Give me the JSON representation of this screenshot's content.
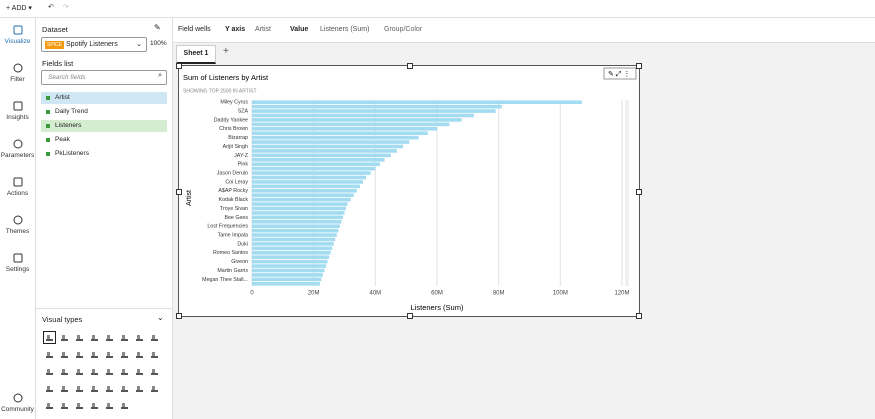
{
  "toolbar": {
    "add": "ADD"
  },
  "nav": [
    "Visualize",
    "Filter",
    "Insights",
    "Parameters",
    "Actions",
    "Themes",
    "Settings",
    "Community"
  ],
  "dataset": {
    "label": "Dataset",
    "badge": "SPICE",
    "name": "Spotify Listeners",
    "percent": "100%"
  },
  "fields": {
    "label": "Fields list",
    "search": "Search fields",
    "items": [
      "Artist",
      "Daily Trend",
      "Listeners",
      "Peak",
      "PkListeners"
    ]
  },
  "visual_types": {
    "label": "Visual types"
  },
  "field_wells": {
    "label": "Field wells",
    "y_axis": "Y axis",
    "y_field": "Artist",
    "value": "Value",
    "value_field": "Listeners (Sum)",
    "group": "Group/Color"
  },
  "sheets": [
    "Sheet 1"
  ],
  "chart_data": {
    "type": "hbar",
    "title": "Sum of Listeners by Artist",
    "subtitle": "SHOWING TOP 2500 IN ARTIST",
    "x_label": "Listeners (Sum)",
    "y_label": "Artist",
    "color": "#a3dcf0",
    "grid": true,
    "categories": [
      "Miley Cyrus",
      null,
      "SZA",
      null,
      "Daddy Yankee",
      null,
      "Chris Brown",
      null,
      "Bizarrap",
      null,
      "Arijit Singh",
      null,
      "JAY-Z",
      null,
      "Pink",
      null,
      "Jason Derulo",
      null,
      "Coi Leray",
      null,
      "A$AP Rocky",
      null,
      "Kodak Black",
      null,
      "Troye Sivan",
      null,
      "Bee Gees",
      null,
      "Lost Frequencies",
      null,
      "Tame Impala",
      null,
      "Duki",
      null,
      "Romeo Santos",
      null,
      "Giveon",
      null,
      "Martin Garrix",
      null,
      "Megan Thee Stall...",
      null
    ],
    "values": [
      107000000,
      81000000,
      79000000,
      72000000,
      68000000,
      64000000,
      60000000,
      57000000,
      54000000,
      51000000,
      49000000,
      47000000,
      45000000,
      43000000,
      41500000,
      40000000,
      38500000,
      37000000,
      36000000,
      35000000,
      34000000,
      33000000,
      32000000,
      31000000,
      30500000,
      30000000,
      29500000,
      29000000,
      28500000,
      28000000,
      27500000,
      27000000,
      26500000,
      26000000,
      25500000,
      25000000,
      24500000,
      24000000,
      23500000,
      23000000,
      22500000,
      22000000
    ],
    "xlim": [
      0,
      120000000
    ],
    "xticks": [
      0,
      {
        "value": 20000000,
        "label": "20M"
      },
      {
        "value": 40000000,
        "label": "40M"
      },
      {
        "value": 60000000,
        "label": "60M"
      },
      {
        "value": 80000000,
        "label": "80M"
      },
      {
        "value": 100000000,
        "label": "100M"
      },
      {
        "value": 120000000,
        "label": "120M"
      }
    ]
  }
}
